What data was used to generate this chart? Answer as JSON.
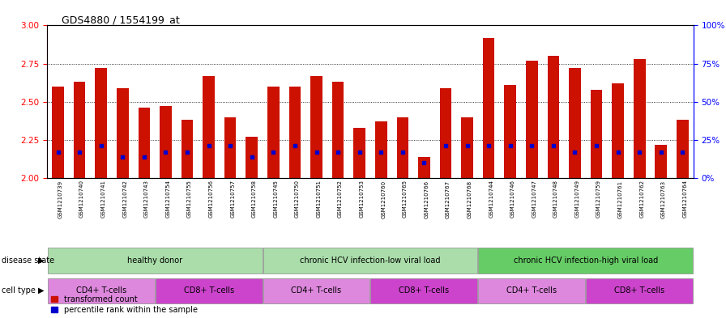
{
  "title": "GDS4880 / 1554199_at",
  "samples": [
    "GSM1210739",
    "GSM1210740",
    "GSM1210741",
    "GSM1210742",
    "GSM1210743",
    "GSM1210754",
    "GSM1210755",
    "GSM1210756",
    "GSM1210757",
    "GSM1210758",
    "GSM1210745",
    "GSM1210750",
    "GSM1210751",
    "GSM1210752",
    "GSM1210753",
    "GSM1210760",
    "GSM1210765",
    "GSM1210766",
    "GSM1210767",
    "GSM1210768",
    "GSM1210744",
    "GSM1210746",
    "GSM1210747",
    "GSM1210748",
    "GSM1210749",
    "GSM1210759",
    "GSM1210761",
    "GSM1210762",
    "GSM1210763",
    "GSM1210764"
  ],
  "transformed_count": [
    2.6,
    2.63,
    2.72,
    2.59,
    2.46,
    2.47,
    2.38,
    2.67,
    2.4,
    2.27,
    2.6,
    2.6,
    2.67,
    2.63,
    2.33,
    2.37,
    2.4,
    2.14,
    2.59,
    2.4,
    2.92,
    2.61,
    2.77,
    2.8,
    2.72,
    2.58,
    2.62,
    2.78,
    2.22,
    2.38
  ],
  "percentile_rank": [
    17,
    17,
    21,
    14,
    14,
    17,
    17,
    21,
    21,
    14,
    17,
    21,
    17,
    17,
    17,
    17,
    17,
    10,
    21,
    21,
    21,
    21,
    21,
    21,
    17,
    21,
    17,
    17,
    17,
    17
  ],
  "ylim_left": [
    2.0,
    3.0
  ],
  "yticks_left": [
    2.0,
    2.25,
    2.5,
    2.75,
    3.0
  ],
  "ylim_right": [
    0,
    100
  ],
  "yticks_right": [
    0,
    25,
    50,
    75,
    100
  ],
  "ytick_right_labels": [
    "0%",
    "25%",
    "50%",
    "75%",
    "100%"
  ],
  "bar_color": "#cc1100",
  "marker_color": "#0000cc",
  "bg_color": "#ffffff",
  "plot_bg": "#ffffff",
  "xtick_bg": "#cccccc",
  "ds_groups": [
    {
      "label": "healthy donor",
      "start": 0,
      "end": 10,
      "color": "#aaddaa"
    },
    {
      "label": "chronic HCV infection-low viral load",
      "start": 10,
      "end": 20,
      "color": "#aaddaa"
    },
    {
      "label": "chronic HCV infection-high viral load",
      "start": 20,
      "end": 30,
      "color": "#66cc66"
    }
  ],
  "ct_groups": [
    {
      "label": "CD4+ T-cells",
      "start": 0,
      "end": 5,
      "color": "#dd88dd"
    },
    {
      "label": "CD8+ T-cells",
      "start": 5,
      "end": 10,
      "color": "#cc44cc"
    },
    {
      "label": "CD4+ T-cells",
      "start": 10,
      "end": 15,
      "color": "#dd88dd"
    },
    {
      "label": "CD8+ T-cells",
      "start": 15,
      "end": 20,
      "color": "#cc44cc"
    },
    {
      "label": "CD4+ T-cells",
      "start": 20,
      "end": 25,
      "color": "#dd88dd"
    },
    {
      "label": "CD8+ T-cells",
      "start": 25,
      "end": 30,
      "color": "#cc44cc"
    }
  ]
}
